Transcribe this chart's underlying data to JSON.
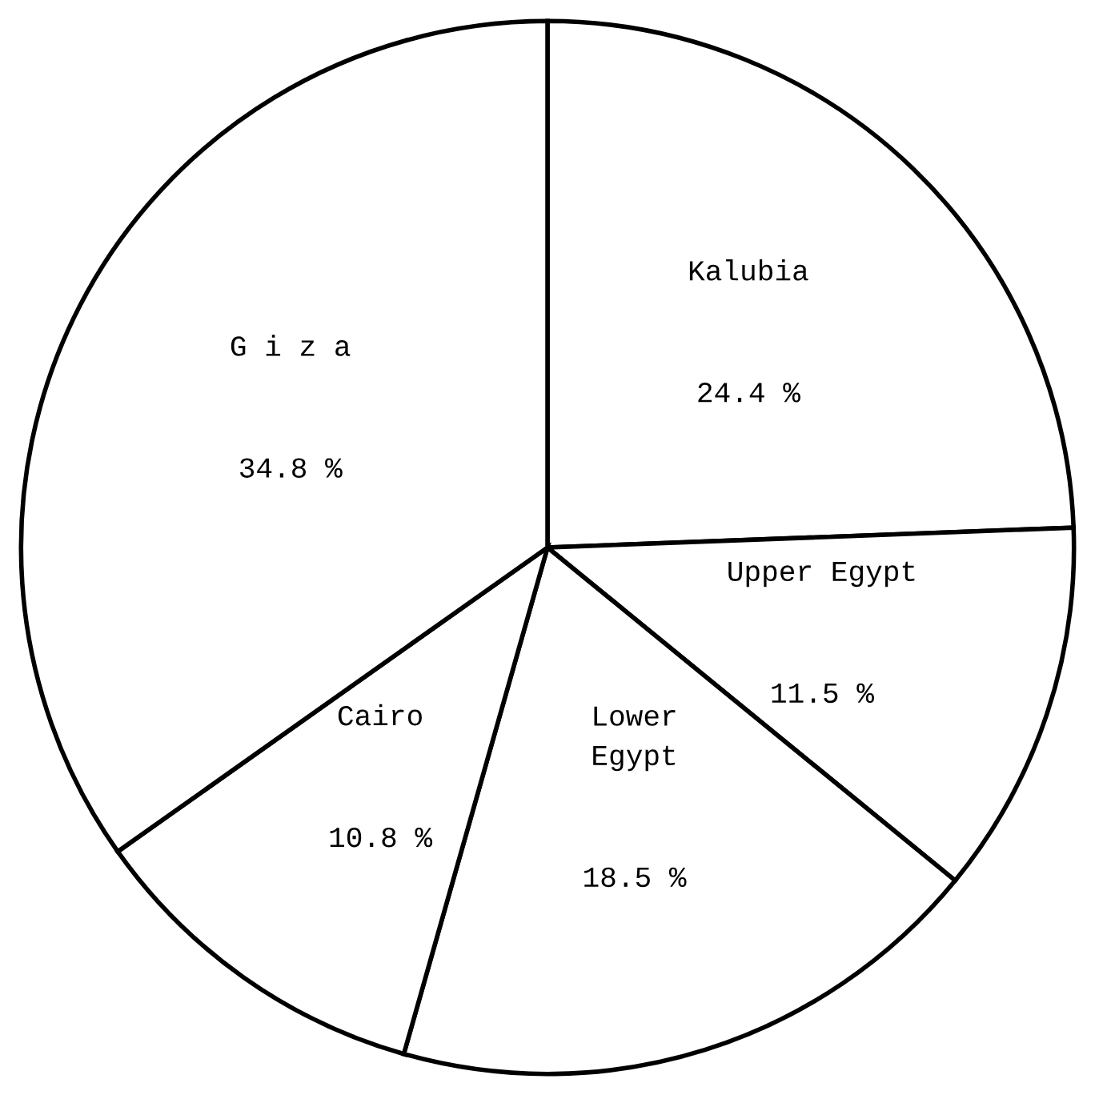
{
  "chart_data": {
    "type": "pie",
    "categories": [
      "Kalubia",
      "Upper Egypt",
      "Lower\nEgypt",
      "Cairo",
      "G i z a"
    ],
    "values": [
      24.4,
      11.5,
      18.5,
      10.8,
      34.8
    ],
    "colors": [
      "#ffffff",
      "#ffffff",
      "#ffffff",
      "#ffffff",
      "#ffffff"
    ],
    "value_labels": [
      "24.4 %",
      "11.5 %",
      "18.5 %",
      "10.8 %",
      "34.8 %"
    ],
    "legend": false
  }
}
